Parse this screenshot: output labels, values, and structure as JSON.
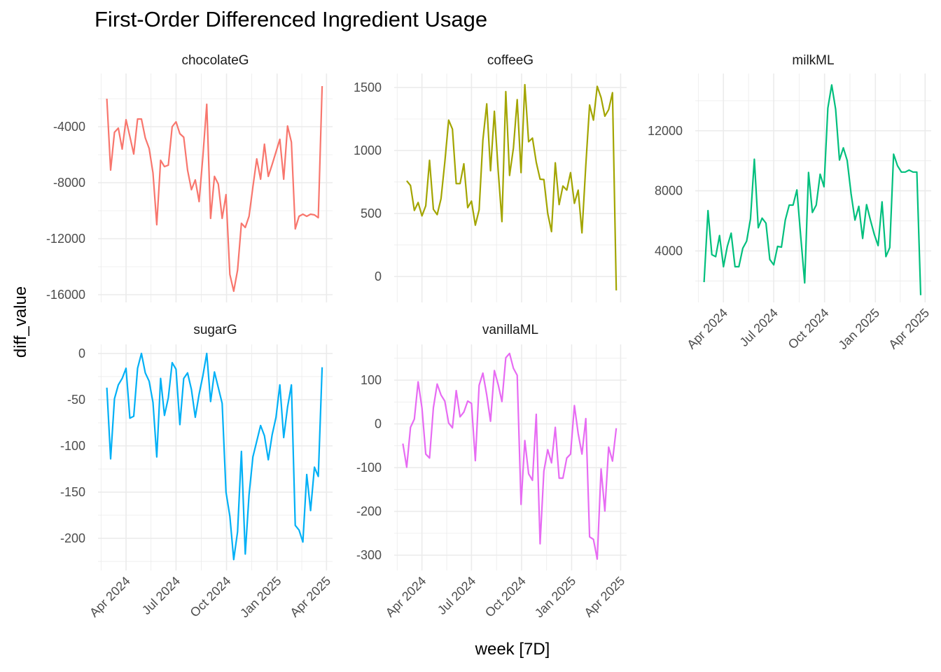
{
  "chart_data": {
    "type": "line",
    "title": "First-Order Differenced Ingredient Usage",
    "xlabel": "week [7D]",
    "ylabel": "diff_value",
    "xlim": [
      "2024-02-10",
      "2025-04-12"
    ],
    "x_ticks": [
      {
        "date": "2024-04-01",
        "label": "Apr 2024"
      },
      {
        "date": "2024-07-01",
        "label": "Jul 2024"
      },
      {
        "date": "2024-10-01",
        "label": "Oct 2024"
      },
      {
        "date": "2025-01-01",
        "label": "Jan 2025"
      },
      {
        "date": "2025-04-01",
        "label": "Apr 2025"
      }
    ],
    "grid": true,
    "facets": [
      {
        "name": "chocolateG",
        "color": "#F8766D",
        "x_start": "2024-02-26",
        "x_step_days": 7,
        "ylim": [
          -16550,
          -200
        ],
        "yticks": [
          -4000,
          -8000,
          -12000,
          -16000
        ],
        "ytick_labels": [
          "-4000",
          "-8000",
          "-12000",
          "-16000"
        ],
        "values": [
          -2000,
          -7100,
          -4400,
          -4100,
          -5600,
          -3500,
          -4700,
          -5950,
          -3450,
          -3450,
          -4800,
          -5550,
          -7300,
          -11000,
          -6400,
          -6850,
          -6750,
          -4000,
          -3650,
          -4500,
          -4750,
          -7100,
          -8500,
          -7800,
          -9350,
          -6100,
          -2400,
          -10550,
          -7550,
          -8100,
          -10550,
          -8850,
          -14550,
          -15750,
          -14250,
          -10900,
          -11200,
          -10400,
          -8300,
          -6300,
          -7750,
          -5250,
          -7550,
          -6700,
          -5800,
          -4900,
          -7750,
          -3950,
          -5100,
          -11300,
          -10400,
          -10250,
          -10400,
          -10250,
          -10300,
          -10500,
          -1100
        ]
      },
      {
        "name": "coffeeG",
        "color": "#A3A500",
        "x_start": "2024-03-04",
        "x_step_days": 7,
        "ylim": [
          -206,
          1611
        ],
        "yticks": [
          1500,
          1000,
          500,
          0
        ],
        "ytick_labels": [
          "1500",
          "1000",
          "500",
          "0"
        ],
        "values": [
          759,
          722,
          524,
          587,
          481,
          561,
          922,
          533,
          491,
          617,
          907,
          1241,
          1170,
          737,
          737,
          894,
          546,
          598,
          407,
          528,
          1083,
          1370,
          839,
          1311,
          843,
          435,
          1467,
          802,
          1019,
          1404,
          824,
          1522,
          1069,
          1098,
          907,
          772,
          769,
          500,
          356,
          902,
          570,
          718,
          685,
          824,
          580,
          685,
          346,
          883,
          1361,
          1241,
          1509,
          1420,
          1272,
          1324,
          1459,
          -111
        ]
      },
      {
        "name": "milkML",
        "color": "#00BF7D",
        "x_start": "2024-02-26",
        "x_step_days": 7,
        "ylim": [
          571,
          15810
        ],
        "yticks": [
          12000,
          8000,
          4000
        ],
        "ytick_labels": [
          "12000",
          "8000",
          "4000"
        ],
        "values": [
          1920,
          6680,
          3750,
          3620,
          5020,
          2950,
          4300,
          5180,
          2950,
          2950,
          4180,
          4650,
          6130,
          10100,
          5540,
          6180,
          5840,
          3430,
          3070,
          4300,
          4250,
          6050,
          7050,
          7050,
          8060,
          4940,
          1870,
          9220,
          6560,
          7050,
          9110,
          8270,
          13510,
          15050,
          13430,
          10050,
          10860,
          10020,
          7800,
          6050,
          6970,
          4830,
          7080,
          6050,
          5100,
          4350,
          7270,
          3620,
          4220,
          10440,
          9670,
          9250,
          9250,
          9380,
          9250,
          9250,
          1050
        ]
      },
      {
        "name": "sugarG",
        "color": "#00B0F6",
        "x_start": "2024-02-26",
        "x_step_days": 7,
        "ylim": [
          -234.8,
          9.8
        ],
        "yticks": [
          0,
          -50,
          -100,
          -150,
          -200
        ],
        "ytick_labels": [
          "0",
          "-50",
          "-100",
          "-150",
          "-200"
        ],
        "values": [
          -37,
          -114,
          -49,
          -34,
          -27,
          -16,
          -70,
          -68,
          -16,
          0,
          -21,
          -30,
          -53,
          -112,
          -27,
          -67,
          -48,
          -10,
          -17,
          -77,
          -27,
          -21,
          -39,
          -69,
          -44,
          -24,
          0,
          -52,
          -20,
          -37,
          -54,
          -150,
          -176,
          -223,
          -193,
          -106,
          -217,
          -153,
          -112,
          -95,
          -78,
          -89,
          -115,
          -88,
          -69,
          -34,
          -91,
          -58,
          -34,
          -186,
          -191,
          -204,
          -131,
          -170,
          -123,
          -133,
          -15
        ]
      },
      {
        "name": "vanillaML",
        "color": "#E76BF3",
        "x_start": "2024-02-26",
        "x_step_days": 7,
        "ylim": [
          -335,
          181.6
        ],
        "yticks": [
          100,
          0,
          -100,
          -200,
          -300
        ],
        "ytick_labels": [
          "100",
          "0",
          "-100",
          "-200",
          "-300"
        ],
        "values": [
          -45,
          -99,
          -8,
          11,
          96,
          36,
          -69,
          -78,
          37,
          91,
          66,
          52,
          2,
          -9,
          76,
          16,
          27,
          52,
          47,
          -84,
          88,
          116,
          66,
          6,
          122,
          90,
          51,
          151,
          161,
          127,
          111,
          -184,
          -38,
          -114,
          -129,
          22,
          -274,
          -108,
          -59,
          -89,
          -8,
          -124,
          -124,
          -78,
          -69,
          42,
          -22,
          -69,
          12,
          -258,
          -264,
          -309,
          -103,
          -199,
          -53,
          -85,
          -10
        ]
      }
    ]
  }
}
